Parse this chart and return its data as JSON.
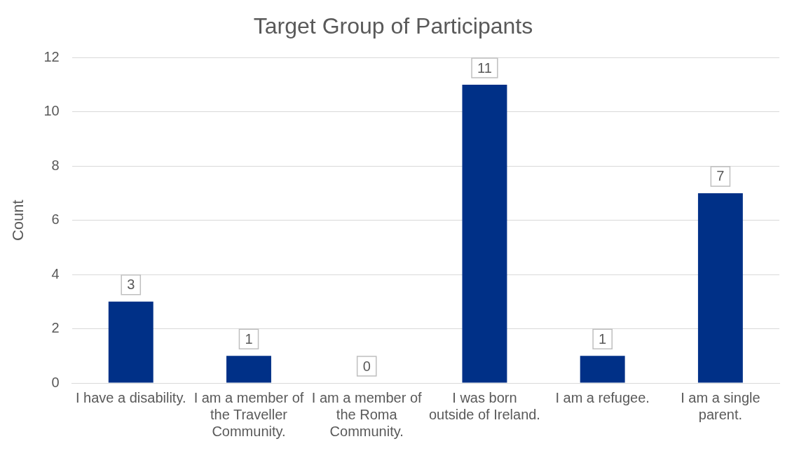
{
  "chart_data": {
    "type": "bar",
    "title": "Target Group of Participants",
    "ylabel": "Count",
    "categories": [
      "I have a disability.",
      "I am a member of the Traveller Community.",
      "I am a member of the Roma Community.",
      "I was born outside of Ireland.",
      "I am a refugee.",
      "I am a single parent."
    ],
    "values": [
      3,
      1,
      0,
      11,
      1,
      7
    ],
    "color": "#003087",
    "ylim": [
      0,
      12
    ],
    "yticks": [
      0,
      2,
      4,
      6,
      8,
      10,
      12
    ],
    "grid": "y",
    "data_labels": true,
    "legend": false
  }
}
